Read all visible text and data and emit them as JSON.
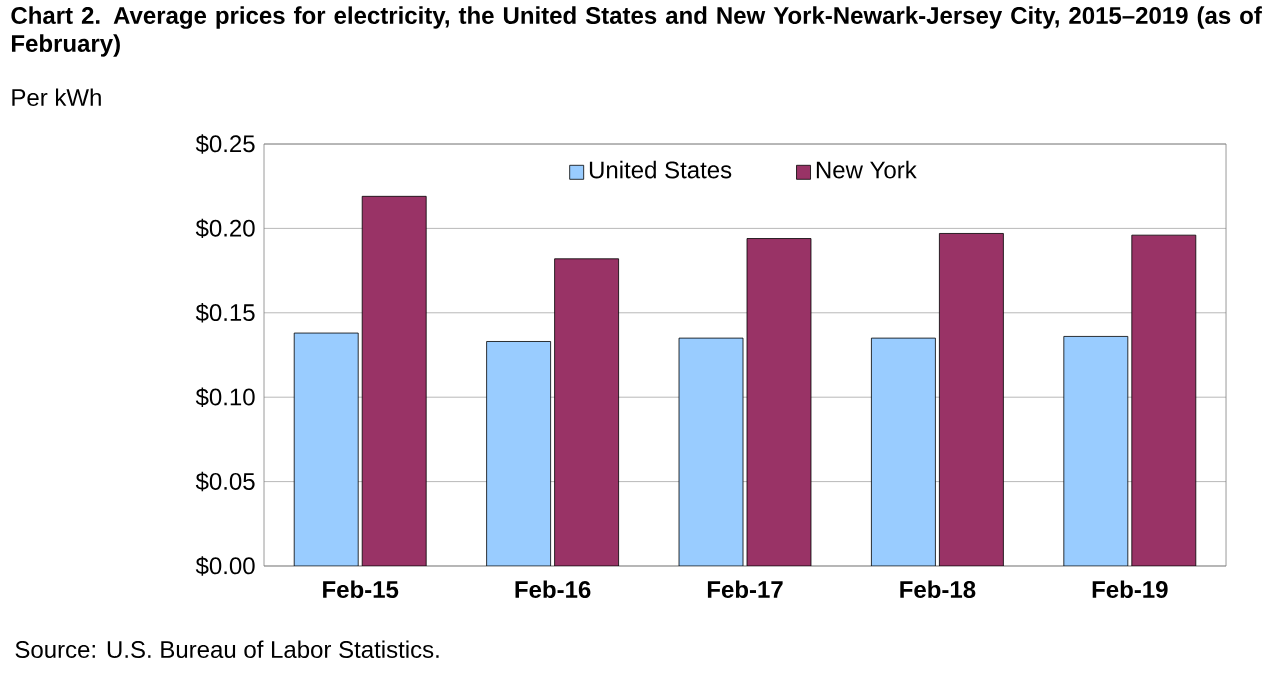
{
  "chart_data": {
    "type": "bar",
    "title": "Chart 2. Average prices for electricity, the United States and New York-Newark-Jersey City, 2015–2019 (as of February)",
    "ylabel": "Per kWh",
    "annotations": [
      "Source: U.S. Bureau of Labor Statistics."
    ],
    "categories": [
      "Feb-15",
      "Feb-16",
      "Feb-17",
      "Feb-18",
      "Feb-19"
    ],
    "series": [
      {
        "name": "United States",
        "color": "#99ccff",
        "values": [
          0.138,
          0.133,
          0.135,
          0.135,
          0.136
        ]
      },
      {
        "name": "New York",
        "color": "#993366",
        "values": [
          0.219,
          0.182,
          0.194,
          0.197,
          0.196
        ]
      }
    ],
    "ylim": [
      0,
      0.25
    ],
    "yticks": [
      {
        "value": 0,
        "label": "$0.00"
      },
      {
        "value": 0.05,
        "label": "$0.05"
      },
      {
        "value": 0.1,
        "label": "$0.10"
      },
      {
        "value": 0.15,
        "label": "$0.15"
      },
      {
        "value": 0.2,
        "label": "$0.20"
      },
      {
        "value": 0.25,
        "label": "$0.25"
      }
    ],
    "grid": "y",
    "legend": "top"
  }
}
